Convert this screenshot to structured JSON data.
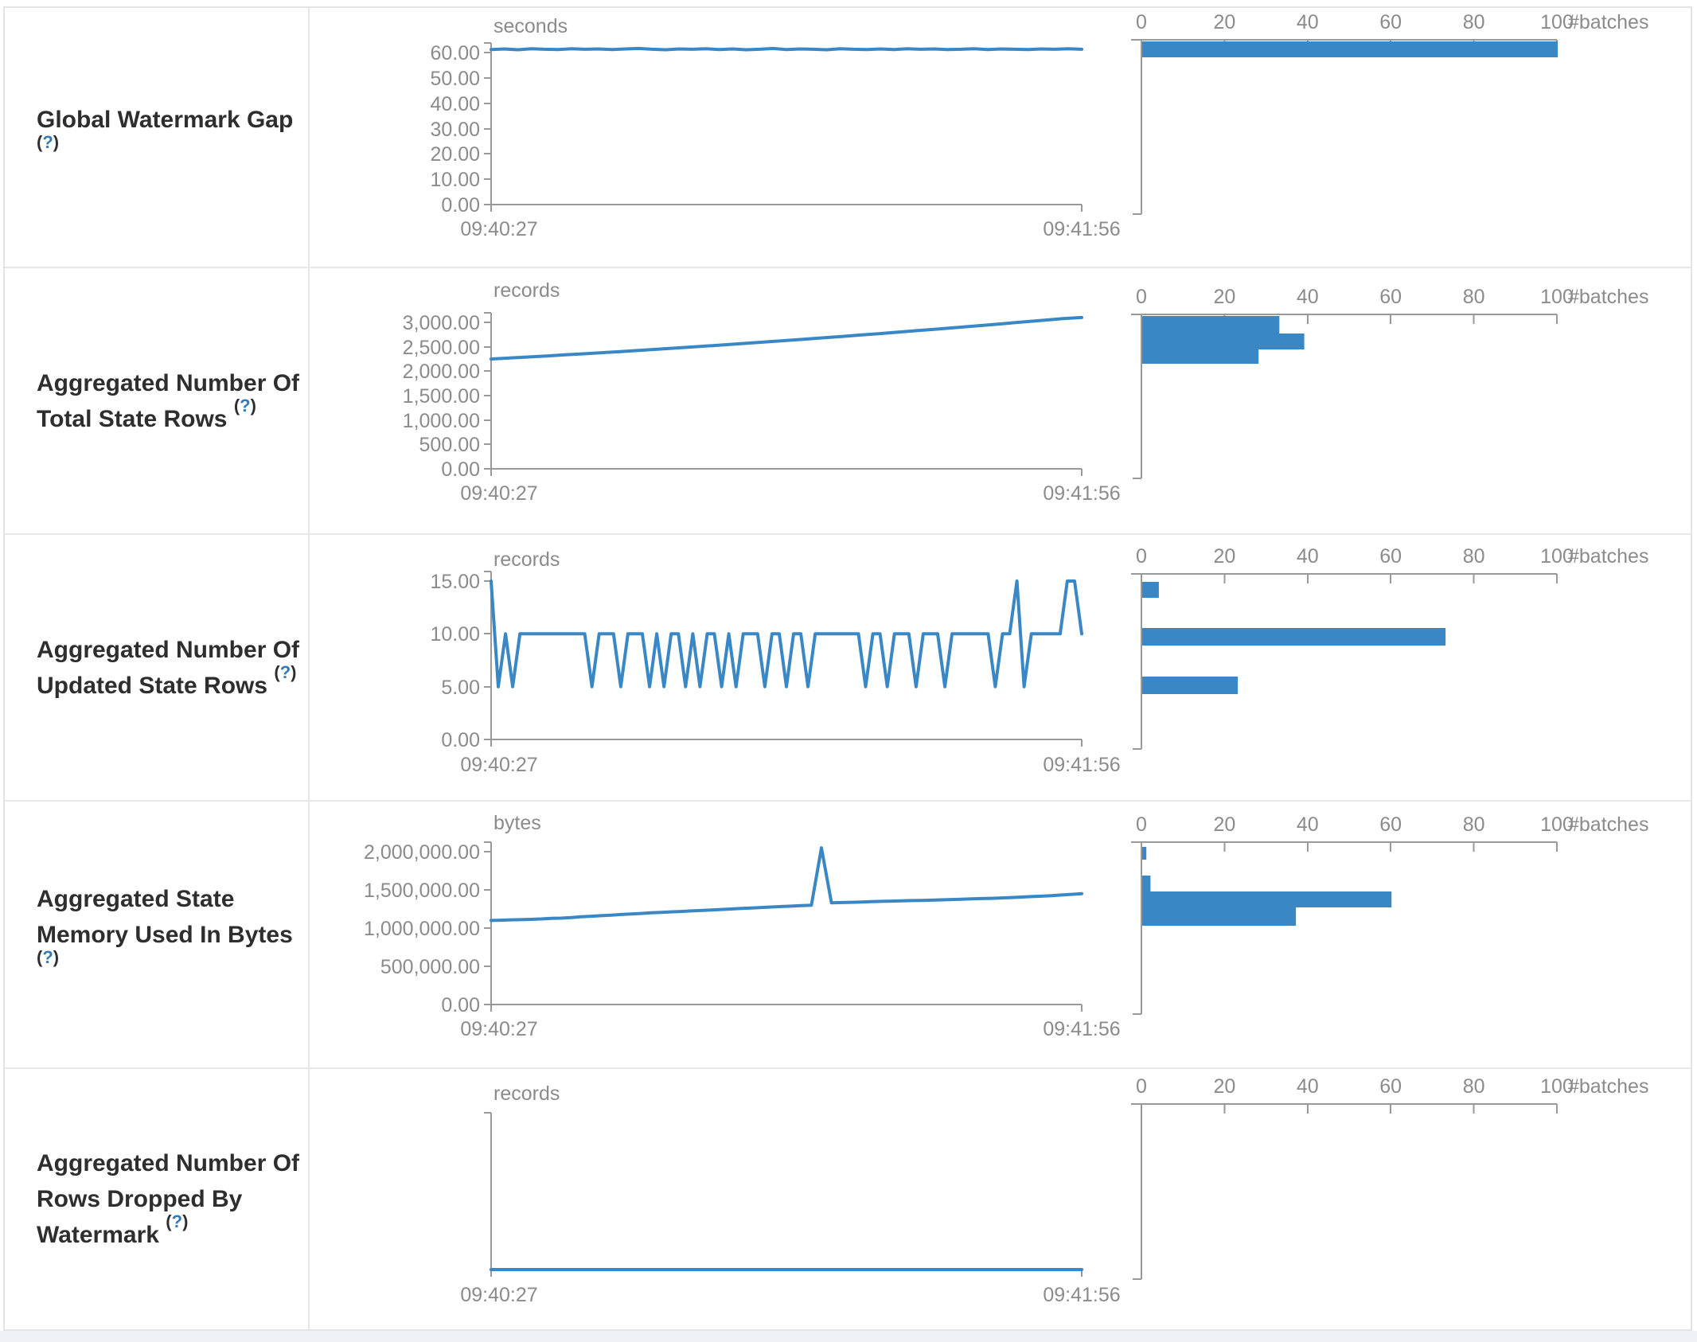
{
  "colors": {
    "series_blue": "#3a87c5",
    "bar_blue": "#3a87c5",
    "axis_gray": "#999999",
    "tick_text_gray": "#8b8b8b",
    "label_text": "#2e2e2e",
    "help_link_blue": "#337ab7",
    "table_border": "#e7e7e7",
    "footer_strip": "#edf0f4"
  },
  "batches_axis": {
    "ticks": [
      "0",
      "20",
      "40",
      "60",
      "80",
      "100"
    ],
    "label": "#batches",
    "max": 100
  },
  "chart_data": [
    {
      "label": "Global Watermark Gap",
      "help": "?",
      "timeline": {
        "type": "line",
        "unit": "seconds",
        "x_ticks": [
          "09:40:27",
          "09:41:56"
        ],
        "y_ticks": [
          {
            "label": "60.00",
            "value": 60
          },
          {
            "label": "50.00",
            "value": 50
          },
          {
            "label": "40.00",
            "value": 40
          },
          {
            "label": "30.00",
            "value": 30
          },
          {
            "label": "20.00",
            "value": 20
          },
          {
            "label": "10.00",
            "value": 10
          },
          {
            "label": "0.00",
            "value": 0
          }
        ],
        "ylim": [
          0,
          62
        ],
        "values": [
          61.2,
          61.4,
          61.1,
          61.5,
          61.3,
          61.2,
          61.5,
          61.3,
          61.4,
          61.2,
          61.4,
          61.6,
          61.3,
          61.1,
          61.4,
          61.3,
          61.5,
          61.2,
          61.4,
          61.1,
          61.3,
          61.6,
          61.2,
          61.4,
          61.3,
          61.1,
          61.5,
          61.3,
          61.2,
          61.4,
          61.2,
          61.5,
          61.3,
          61.4,
          61.2,
          61.3,
          61.5,
          61.2,
          61.4,
          61.3,
          61.2,
          61.4,
          61.3,
          61.5,
          61.3
        ]
      },
      "histogram": {
        "type": "bar",
        "unit": "#batches",
        "bins": [
          {
            "value_at": "~61 seconds",
            "count": 100,
            "y": 42,
            "h": 20
          }
        ]
      }
    },
    {
      "label": "Aggregated Number Of Total State Rows",
      "help": "?",
      "timeline": {
        "type": "line",
        "unit": "records",
        "x_ticks": [
          "09:40:27",
          "09:41:56"
        ],
        "y_ticks": [
          {
            "label": "3,000.00",
            "value": 3000
          },
          {
            "label": "2,500.00",
            "value": 2500
          },
          {
            "label": "2,000.00",
            "value": 2000
          },
          {
            "label": "1,500.00",
            "value": 1500
          },
          {
            "label": "1,000.00",
            "value": 1000
          },
          {
            "label": "500.00",
            "value": 500
          },
          {
            "label": "0.00",
            "value": 0
          }
        ],
        "ylim": [
          0,
          3100
        ],
        "values": [
          2250,
          2270,
          2290,
          2312,
          2334,
          2356,
          2379,
          2402,
          2426,
          2450,
          2474,
          2499,
          2524,
          2550,
          2576,
          2602,
          2629,
          2656,
          2684,
          2712,
          2740,
          2769,
          2798,
          2828,
          2858,
          2888,
          2919,
          2950,
          2982,
          3014,
          3046,
          3079,
          3100
        ]
      },
      "histogram": {
        "type": "bar",
        "unit": "#batches",
        "bins": [
          {
            "value_at": "~2,820–3,100 records",
            "count": 33,
            "y": 60,
            "h": 22
          },
          {
            "value_at": "~2,530–2,820 records",
            "count": 39,
            "y": 82,
            "h": 20
          },
          {
            "value_at": "~2,250–2,530 records",
            "count": 28,
            "y": 102,
            "h": 18
          }
        ]
      }
    },
    {
      "label": "Aggregated Number Of Updated State Rows",
      "help": "?",
      "timeline": {
        "type": "line",
        "unit": "records",
        "x_ticks": [
          "09:40:27",
          "09:41:56"
        ],
        "y_ticks": [
          {
            "label": "15.00",
            "value": 15
          },
          {
            "label": "10.00",
            "value": 10
          },
          {
            "label": "5.00",
            "value": 5
          },
          {
            "label": "0.00",
            "value": 0
          }
        ],
        "ylim": [
          0,
          15.5
        ],
        "values": [
          15,
          5,
          10,
          5,
          10,
          10,
          10,
          10,
          10,
          10,
          10,
          10,
          10,
          10,
          5,
          10,
          10,
          10,
          5,
          10,
          10,
          10,
          5,
          10,
          5,
          10,
          10,
          5,
          10,
          5,
          10,
          10,
          5,
          10,
          5,
          10,
          10,
          10,
          5,
          10,
          10,
          5,
          10,
          10,
          5,
          10,
          10,
          10,
          10,
          10,
          10,
          10,
          5,
          10,
          10,
          5,
          10,
          10,
          10,
          5,
          10,
          10,
          10,
          5,
          10,
          10,
          10,
          10,
          10,
          10,
          5,
          10,
          10,
          15,
          5,
          10,
          10,
          10,
          10,
          10,
          15,
          15,
          10
        ]
      },
      "histogram": {
        "type": "bar",
        "unit": "#batches",
        "bins": [
          {
            "value_at": "15 records",
            "count": 4,
            "y": 59,
            "h": 20
          },
          {
            "value_at": "10 records",
            "count": 73,
            "y": 117,
            "h": 22
          },
          {
            "value_at": "5 records",
            "count": 23,
            "y": 178,
            "h": 22
          }
        ]
      }
    },
    {
      "label": "Aggregated State Memory Used In Bytes",
      "help": "?",
      "timeline": {
        "type": "line",
        "unit": "bytes",
        "x_ticks": [
          "09:40:27",
          "09:41:56"
        ],
        "y_ticks": [
          {
            "label": "2,000,000.00",
            "value": 2000000
          },
          {
            "label": "1,500,000.00",
            "value": 1500000
          },
          {
            "label": "1,000,000.00",
            "value": 1000000
          },
          {
            "label": "500,000.00",
            "value": 500000
          },
          {
            "label": "0.00",
            "value": 0
          }
        ],
        "ylim": [
          0,
          2060000
        ],
        "values": [
          1100000,
          1103000,
          1108000,
          1110000,
          1115000,
          1120000,
          1128000,
          1130000,
          1138000,
          1148000,
          1155000,
          1162000,
          1170000,
          1178000,
          1185000,
          1192000,
          1200000,
          1205000,
          1212000,
          1218000,
          1225000,
          1230000,
          1238000,
          1244000,
          1250000,
          1258000,
          1264000,
          1270000,
          1276000,
          1282000,
          1288000,
          1294000,
          1300000,
          2050000,
          1330000,
          1334000,
          1338000,
          1342000,
          1346000,
          1350000,
          1353000,
          1356000,
          1360000,
          1363000,
          1366000,
          1370000,
          1374000,
          1378000,
          1382000,
          1386000,
          1390000,
          1395000,
          1400000,
          1406000,
          1412000,
          1418000,
          1425000,
          1433000,
          1442000,
          1450000
        ]
      },
      "histogram": {
        "type": "bar",
        "unit": "#batches",
        "bins": [
          {
            "value_at": "~1,860,000–2,050,000 bytes",
            "count": 1,
            "y": 57,
            "h": 16
          },
          {
            "value_at": "~1,480,000–1,670,000 bytes",
            "count": 2,
            "y": 93,
            "h": 20
          },
          {
            "value_at": "~1,290,000–1,480,000 bytes",
            "count": 60,
            "y": 113,
            "h": 20
          },
          {
            "value_at": "~1,100,000–1,290,000 bytes",
            "count": 37,
            "y": 133,
            "h": 23
          }
        ]
      }
    },
    {
      "label": "Aggregated Number Of Rows Dropped By Watermark",
      "help": "?",
      "timeline": {
        "type": "line",
        "unit": "records",
        "x_ticks": [
          "09:40:27",
          "09:41:56"
        ],
        "y_ticks": [],
        "ylim": [
          0,
          1
        ],
        "values": [
          0,
          0,
          0,
          0,
          0,
          0,
          0,
          0,
          0,
          0
        ]
      },
      "histogram": {
        "type": "bar",
        "unit": "#batches",
        "bins": []
      }
    }
  ]
}
